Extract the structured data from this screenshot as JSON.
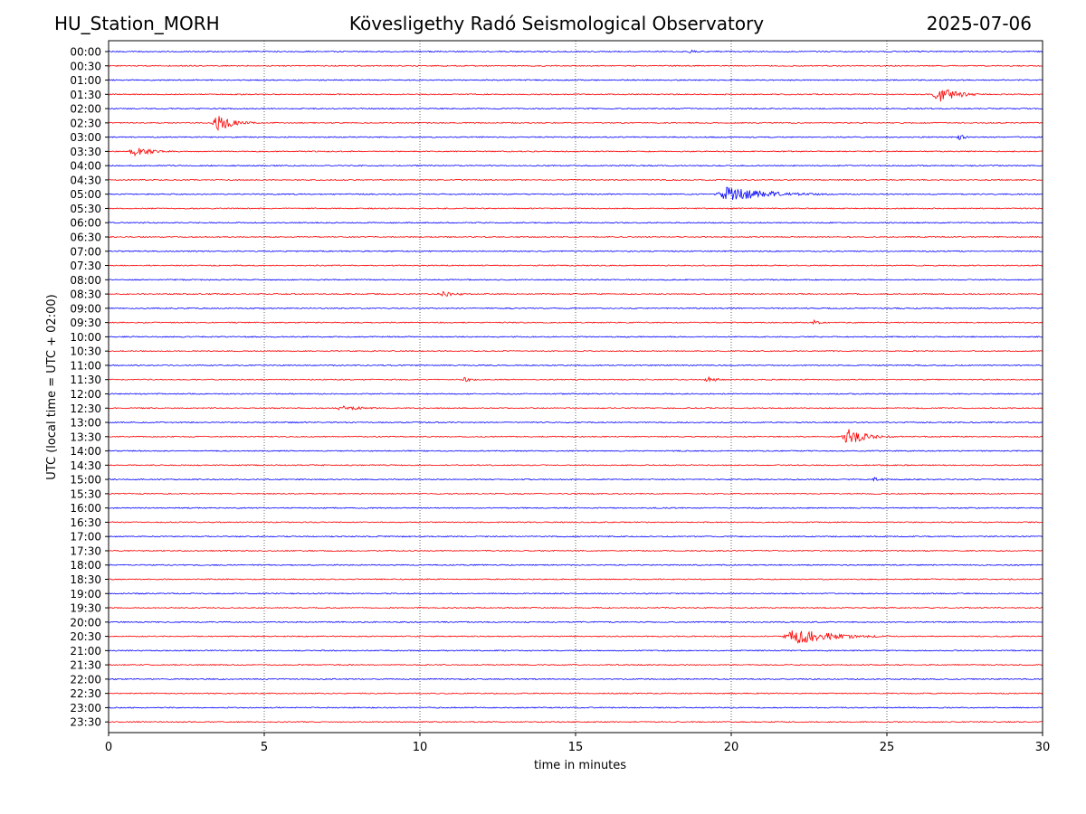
{
  "header": {
    "station": "HU_Station_MORH",
    "observatory": "Kövesligethy Radó Seismological Observatory",
    "date": "2025-07-06"
  },
  "chart_data": {
    "type": "line",
    "title": "Kövesligethy Radó Seismological Observatory",
    "xlabel": "time in minutes",
    "ylabel": "UTC (local time = UTC + 02:00)",
    "xlim": [
      0,
      30
    ],
    "xticks": [
      0,
      5,
      10,
      15,
      20,
      25,
      30
    ],
    "grid": "vertical dotted lines at 5-minute intervals",
    "trace_colors": [
      "#0000ff",
      "#ff0000"
    ],
    "rows": [
      "00:00",
      "00:30",
      "01:00",
      "01:30",
      "02:00",
      "02:30",
      "03:00",
      "03:30",
      "04:00",
      "04:30",
      "05:00",
      "05:30",
      "06:00",
      "06:30",
      "07:00",
      "07:30",
      "08:00",
      "08:30",
      "09:00",
      "09:30",
      "10:00",
      "10:30",
      "11:00",
      "11:30",
      "12:00",
      "12:30",
      "13:00",
      "13:30",
      "14:00",
      "14:30",
      "15:00",
      "15:30",
      "16:00",
      "16:30",
      "17:00",
      "17:30",
      "18:00",
      "18:30",
      "19:00",
      "19:30",
      "20:00",
      "20:30",
      "21:00",
      "21:30",
      "22:00",
      "22:30",
      "23:00",
      "23:30"
    ],
    "events": [
      {
        "row": "00:00",
        "start_min": 18.6,
        "end_min": 19.2,
        "amplitude": "small"
      },
      {
        "row": "01:30",
        "start_min": 26.4,
        "end_min": 28.5,
        "amplitude": "large"
      },
      {
        "row": "02:30",
        "start_min": 3.3,
        "end_min": 5.0,
        "amplitude": "large"
      },
      {
        "row": "03:00",
        "start_min": 27.2,
        "end_min": 28.2,
        "amplitude": "small"
      },
      {
        "row": "03:30",
        "start_min": 0.6,
        "end_min": 2.8,
        "amplitude": "medium"
      },
      {
        "row": "05:00",
        "start_min": 19.4,
        "end_min": 23.6,
        "amplitude": "large"
      },
      {
        "row": "08:30",
        "start_min": 10.5,
        "end_min": 12.5,
        "amplitude": "small"
      },
      {
        "row": "09:30",
        "start_min": 22.6,
        "end_min": 23.2,
        "amplitude": "small"
      },
      {
        "row": "11:30",
        "start_min": 11.3,
        "end_min": 12.2,
        "amplitude": "small"
      },
      {
        "row": "11:30",
        "start_min": 19.1,
        "end_min": 20.4,
        "amplitude": "small"
      },
      {
        "row": "12:30",
        "start_min": 7.2,
        "end_min": 9.8,
        "amplitude": "small"
      },
      {
        "row": "13:30",
        "start_min": 23.5,
        "end_min": 25.5,
        "amplitude": "large"
      },
      {
        "row": "15:00",
        "start_min": 24.5,
        "end_min": 25.5,
        "amplitude": "small"
      },
      {
        "row": "20:30",
        "start_min": 21.6,
        "end_min": 25.5,
        "amplitude": "large"
      }
    ]
  }
}
